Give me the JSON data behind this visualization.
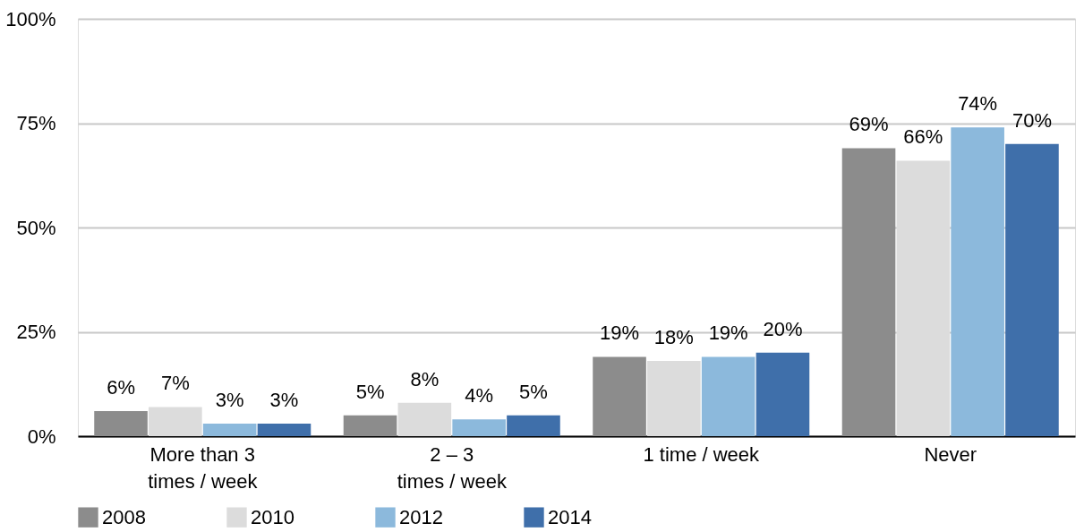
{
  "chart_data": {
    "type": "bar",
    "categories": [
      "More than 3\ntimes / week",
      "2 – 3\ntimes / week",
      "1 time / week",
      "Never"
    ],
    "series": [
      {
        "name": "2008",
        "color": "#8c8c8c",
        "values": [
          6,
          5,
          19,
          69
        ],
        "value_labels": [
          "6%",
          "5%",
          "19%",
          "69%"
        ]
      },
      {
        "name": "2010",
        "color": "#dcdcdc",
        "values": [
          7,
          8,
          18,
          66
        ],
        "value_labels": [
          "7%",
          "8%",
          "18%",
          "66%"
        ]
      },
      {
        "name": "2012",
        "color": "#8cb9dc",
        "values": [
          3,
          4,
          19,
          74
        ],
        "value_labels": [
          "3%",
          "4%",
          "19%",
          "74%"
        ]
      },
      {
        "name": "2014",
        "color": "#3f6faa",
        "values": [
          3,
          5,
          20,
          70
        ],
        "value_labels": [
          "3%",
          "5%",
          "20%",
          "70%"
        ]
      }
    ],
    "ylim": [
      0,
      100
    ],
    "yticks": [
      {
        "value": 0,
        "label": "0%"
      },
      {
        "value": 25,
        "label": "25%"
      },
      {
        "value": 50,
        "label": "50%"
      },
      {
        "value": 75,
        "label": "75%"
      },
      {
        "value": 100,
        "label": "100%"
      }
    ],
    "grid": "y",
    "legend": "bottom"
  }
}
